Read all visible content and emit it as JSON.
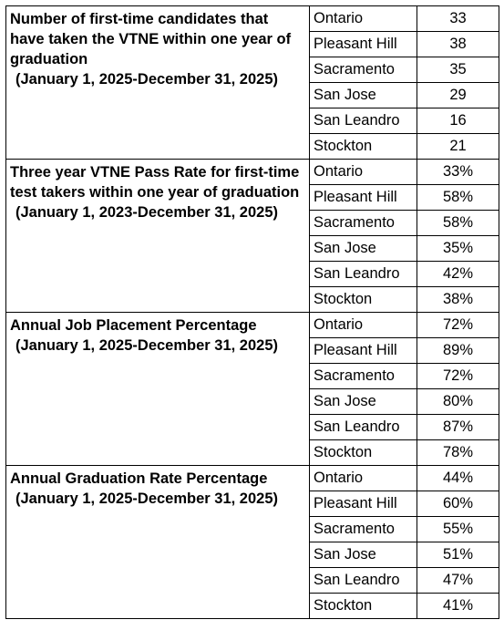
{
  "sections": [
    {
      "title": "Number of first-time candidates that have taken the VTNE within one year of graduation",
      "period": "(January 1, 2025-December 31, 2025)",
      "rows": [
        {
          "campus": "Ontario",
          "value": "33"
        },
        {
          "campus": "Pleasant Hill",
          "value": "38"
        },
        {
          "campus": "Sacramento",
          "value": "35"
        },
        {
          "campus": "San Jose",
          "value": "29"
        },
        {
          "campus": "San Leandro",
          "value": "16"
        },
        {
          "campus": "Stockton",
          "value": "21"
        }
      ]
    },
    {
      "title": "Three year VTNE Pass Rate for first-time test takers within one year of graduation",
      "period": "(January 1, 2023-December 31, 2025)",
      "rows": [
        {
          "campus": "Ontario",
          "value": "33%"
        },
        {
          "campus": "Pleasant Hill",
          "value": "58%"
        },
        {
          "campus": "Sacramento",
          "value": "58%"
        },
        {
          "campus": "San Jose",
          "value": "35%"
        },
        {
          "campus": "San Leandro",
          "value": "42%"
        },
        {
          "campus": "Stockton",
          "value": "38%"
        }
      ]
    },
    {
      "title": "Annual Job Placement Percentage",
      "period": "(January 1, 2025-December 31, 2025)",
      "rows": [
        {
          "campus": "Ontario",
          "value": "72%"
        },
        {
          "campus": "Pleasant Hill",
          "value": "89%"
        },
        {
          "campus": "Sacramento",
          "value": "72%"
        },
        {
          "campus": "San Jose",
          "value": "80%"
        },
        {
          "campus": "San Leandro",
          "value": "87%"
        },
        {
          "campus": "Stockton",
          "value": "78%"
        }
      ]
    },
    {
      "title": "Annual Graduation Rate Percentage",
      "period": "(January 1, 2025-December 31, 2025)",
      "rows": [
        {
          "campus": "Ontario",
          "value": "44%"
        },
        {
          "campus": "Pleasant Hill",
          "value": "60%"
        },
        {
          "campus": "Sacramento",
          "value": "55%"
        },
        {
          "campus": "San Jose",
          "value": "51%"
        },
        {
          "campus": "San Leandro",
          "value": "47%"
        },
        {
          "campus": "Stockton",
          "value": "41%"
        }
      ]
    }
  ]
}
